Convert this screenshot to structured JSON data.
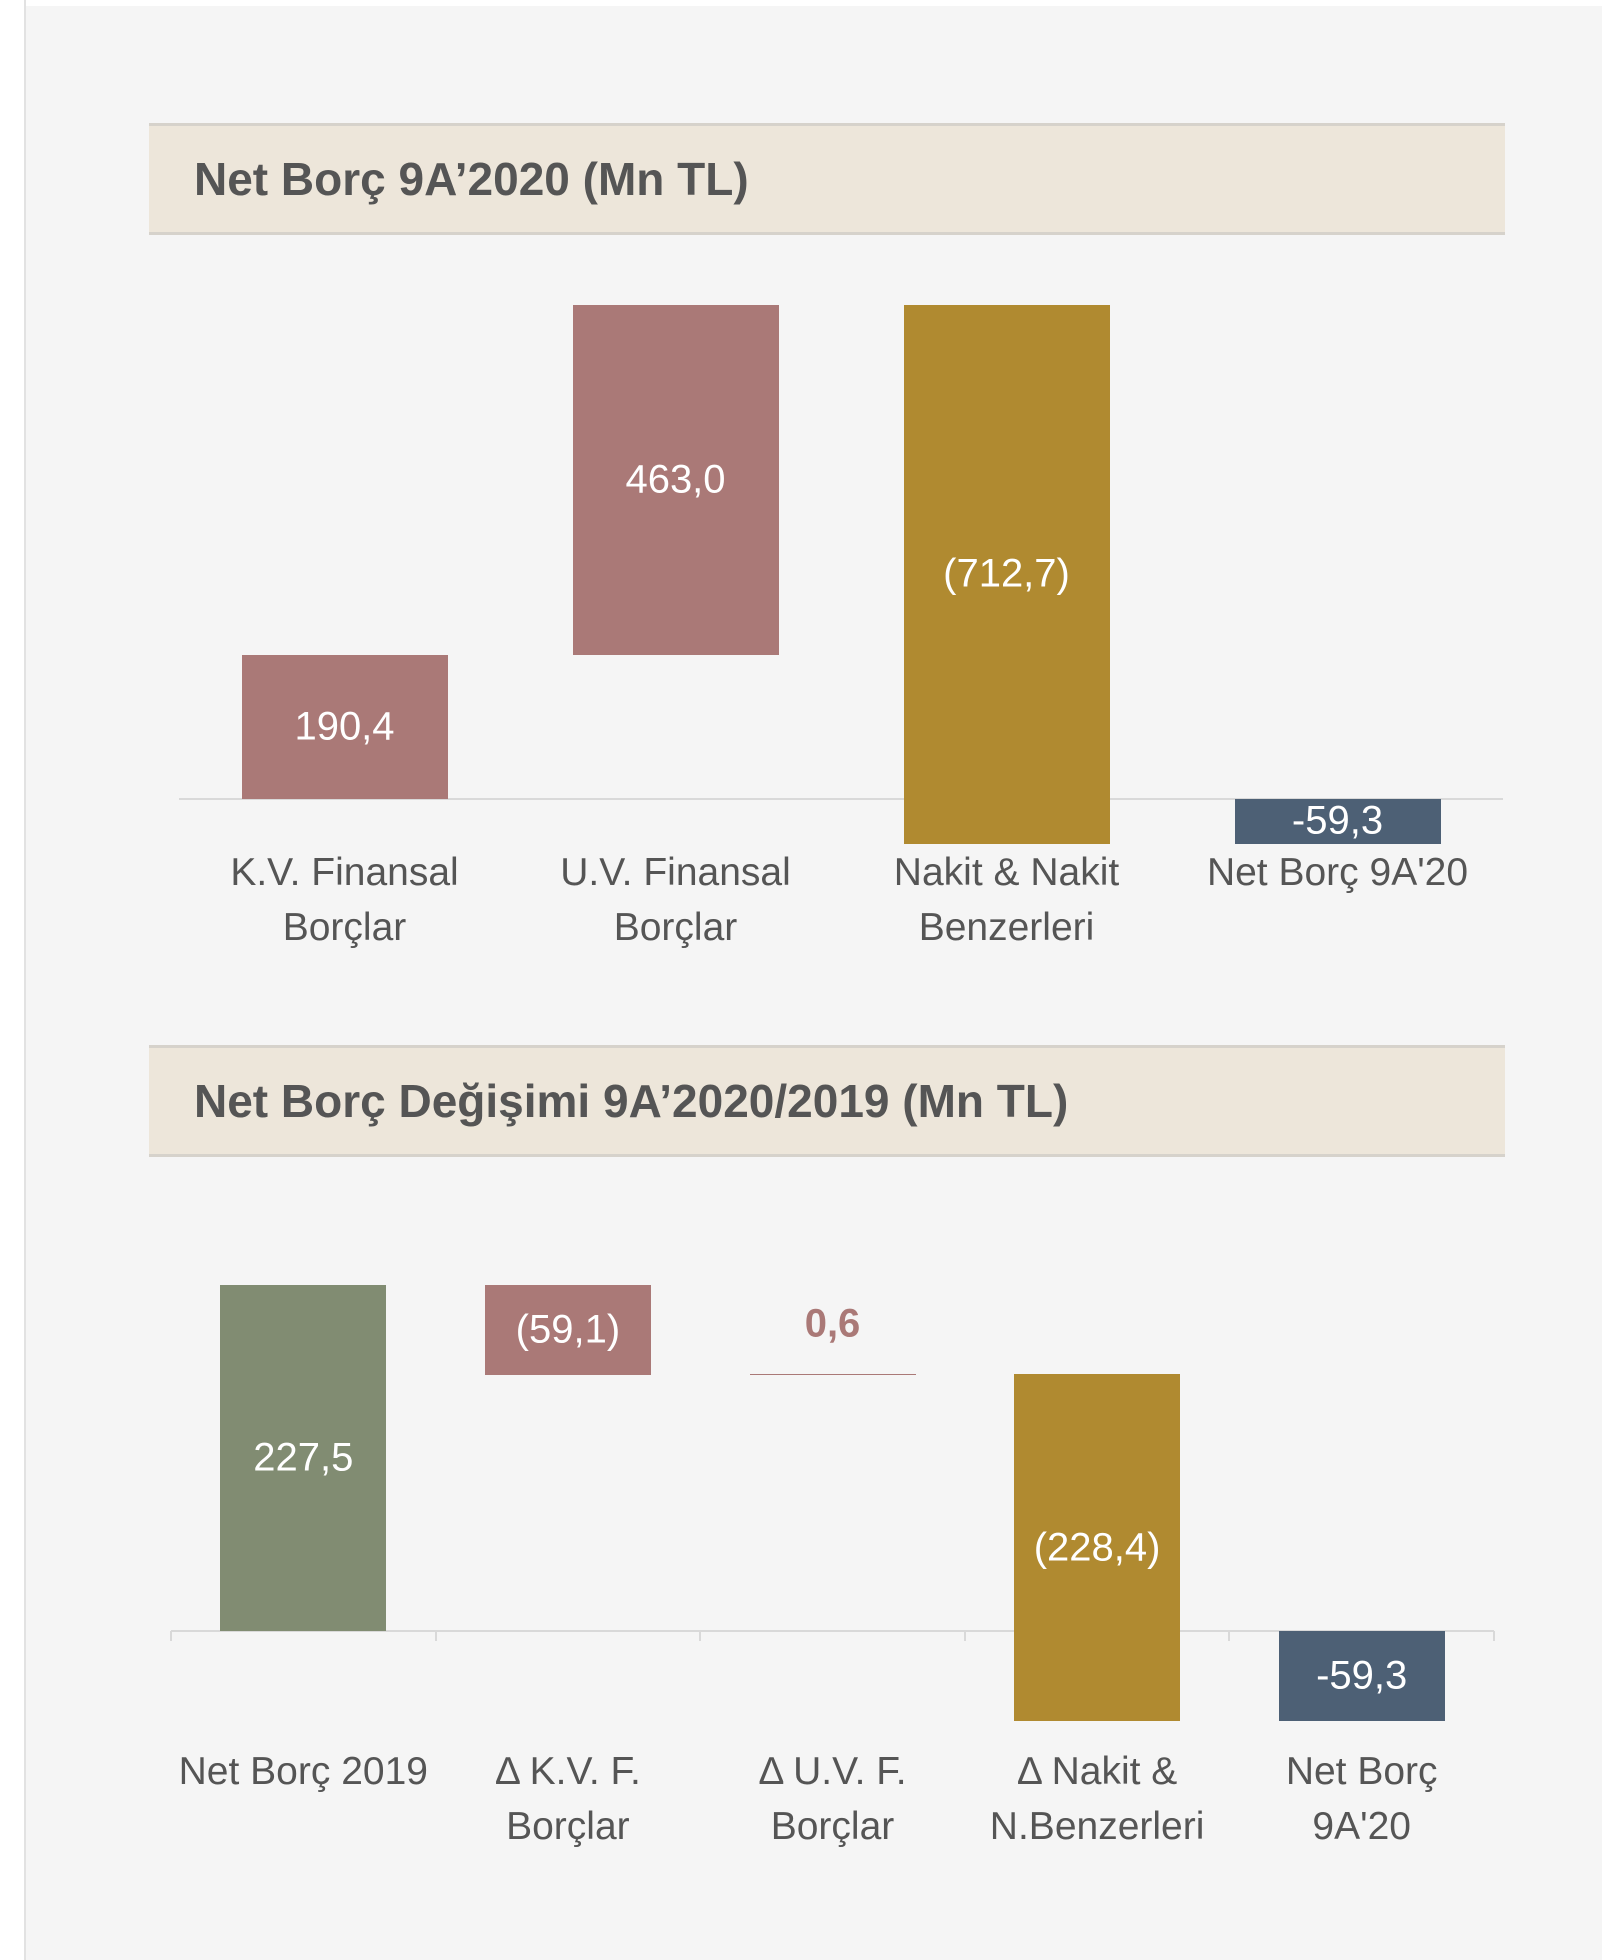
{
  "chart_data": [
    {
      "type": "waterfall",
      "title": "Net Borç 9A’2020 (Mn TL)",
      "categories": [
        "K.V. Finansal\nBorçlar",
        "U.V. Finansal\nBorçlar",
        "Nakit & Nakit\nBenzerleri",
        "Net Borç 9A'20"
      ],
      "values": [
        190.4,
        463.0,
        -712.7,
        -59.3
      ],
      "value_labels": [
        "190,4",
        "463,0",
        "(712,7)",
        "-59,3"
      ],
      "is_total": [
        false,
        false,
        false,
        true
      ],
      "colors": [
        "#aa7977",
        "#aa7977",
        "#b08a30",
        "#4d6075"
      ],
      "axis_ticks": false
    },
    {
      "type": "waterfall",
      "title": "Net Borç Değişimi 9A’2020/2019 (Mn TL)",
      "categories": [
        "Net Borç 2019",
        "Δ K.V. F.\nBorçlar",
        "Δ U.V. F.\nBorçlar",
        "Δ Nakit &\nN.Benzerleri",
        "Net Borç\n9A'20"
      ],
      "values": [
        227.5,
        -59.1,
        0.6,
        -228.4,
        -59.3
      ],
      "value_labels": [
        "227,5",
        "(59,1)",
        "0,6",
        "(228,4)",
        "-59,3"
      ],
      "is_total": [
        true,
        false,
        false,
        false,
        true
      ],
      "colors": [
        "#818c72",
        "#aa7977",
        "#aa7977",
        "#b08a30",
        "#4d6075"
      ],
      "axis_ticks": true
    }
  ]
}
